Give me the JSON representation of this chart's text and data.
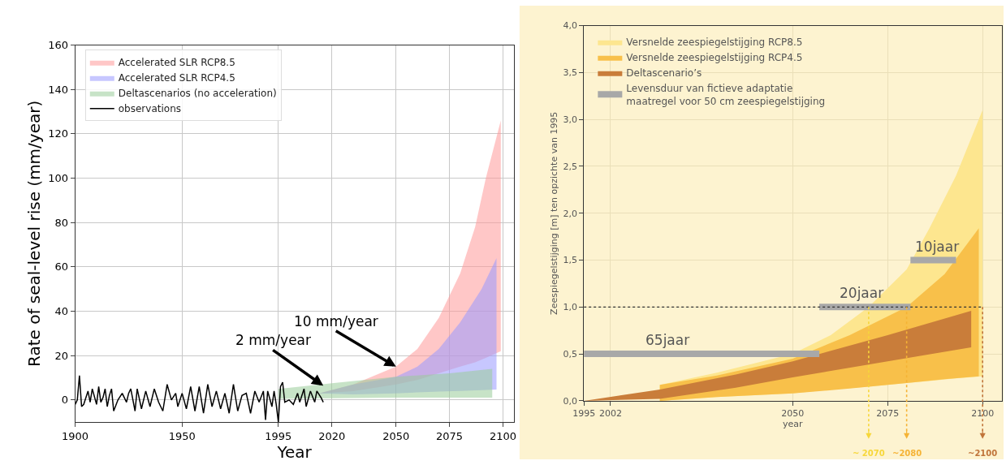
{
  "chart_data": [
    {
      "type": "area",
      "xlabel": "Year",
      "ylabel": "Rate of seal-level rise (mm/year)",
      "xlim": [
        1900,
        2105
      ],
      "ylim": [
        -10,
        160
      ],
      "xticks": [
        1900,
        1950,
        1995,
        2020,
        2050,
        2075,
        2100
      ],
      "yticks": [
        0,
        20,
        40,
        60,
        80,
        100,
        120,
        140,
        160
      ],
      "grid": true,
      "legend": "top left",
      "series": [
        {
          "name": "Accelerated SLR RCP8.5",
          "color": "#ff9999",
          "x": [
            2014,
            2030,
            2050,
            2060,
            2070,
            2080,
            2087,
            2092,
            2099
          ],
          "values": [
            null,
            null,
            null,
            null,
            null,
            null,
            null,
            null,
            null
          ],
          "upper": [
            3,
            7,
            15,
            23,
            37,
            57,
            78,
            100,
            126
          ],
          "lower": [
            3,
            4,
            7,
            9,
            12,
            15,
            17,
            19,
            22
          ]
        },
        {
          "name": "Accelerated SLR RCP4.5",
          "color": "#9999ff",
          "x": [
            2014,
            2030,
            2050,
            2060,
            2070,
            2080,
            2090,
            2097
          ],
          "values": [
            null,
            null,
            null,
            null,
            null,
            null,
            null,
            null
          ],
          "upper": [
            3,
            7,
            10.5,
            15,
            23,
            35,
            50,
            64
          ],
          "lower": [
            3,
            2.5,
            3,
            3.4,
            3.8,
            4.1,
            4.4,
            4.7
          ]
        },
        {
          "name": "Deltascenarios (no acceleration)",
          "color": "#99cc99",
          "x": [
            1995,
            2020,
            2050,
            2075,
            2095
          ],
          "values": [
            null,
            null,
            null,
            null,
            null
          ],
          "upper": [
            5,
            7.5,
            10.5,
            12,
            14
          ],
          "lower": [
            0.5,
            0.8,
            1,
            1,
            1
          ]
        },
        {
          "name": "observations",
          "type": "line",
          "color": "#000000",
          "x": [
            1900,
            1901,
            1902,
            1903,
            1904,
            1906,
            1907,
            1908,
            1910,
            1911,
            1912,
            1913,
            1914,
            1915,
            1916,
            1917,
            1918,
            1920,
            1922,
            1924,
            1925,
            1926,
            1928,
            1929,
            1931,
            1933,
            1935,
            1937,
            1939,
            1941,
            1943,
            1945,
            1947,
            1948,
            1950,
            1952,
            1954,
            1956,
            1958,
            1960,
            1962,
            1964,
            1966,
            1968,
            1970,
            1972,
            1974,
            1976,
            1978,
            1980,
            1982,
            1984,
            1986,
            1988,
            1989,
            1990,
            1992,
            1993,
            1994,
            1995,
            1996,
            1997,
            1998,
            2000,
            2002,
            2004,
            2005,
            2007,
            2008,
            2010,
            2012,
            2013,
            2015,
            2016
          ],
          "values": [
            -2,
            0,
            11,
            -3,
            -2,
            4,
            -1,
            5,
            -2,
            6,
            -1,
            1,
            5,
            -3,
            2,
            5,
            -5,
            0,
            3,
            -1,
            3,
            5,
            -5,
            5,
            -4,
            4,
            -3,
            5,
            -1,
            -5,
            7,
            0,
            3,
            -3,
            3,
            -4,
            6,
            -5,
            6,
            -6,
            7,
            -3,
            4,
            -4,
            3,
            -6,
            7,
            -5,
            2,
            3,
            -6,
            4,
            -1,
            4,
            -9,
            4,
            -3,
            4,
            -2,
            -10,
            6,
            8,
            -1,
            0,
            -2,
            3,
            -1,
            5,
            -3,
            4,
            -1,
            4,
            1,
            -1
          ]
        }
      ],
      "annotations": [
        {
          "text": "2 mm/year",
          "x": 2016,
          "y": 6.4
        },
        {
          "text": "10 mm/year",
          "x": 2050,
          "y": 15
        }
      ]
    },
    {
      "type": "area",
      "xlabel": "year",
      "ylabel": "Zeespiegelstijging [m] ten opzichte van 1995",
      "xlim": [
        1995,
        2105
      ],
      "ylim": [
        0,
        4
      ],
      "xticks": [
        1995,
        2002,
        2050,
        2075,
        2100
      ],
      "yticks": [
        {
          "value": 0,
          "label": "0,0"
        },
        {
          "value": 0.5,
          "label": "0,5"
        },
        {
          "value": 1,
          "label": "1,0"
        },
        {
          "value": 1.5,
          "label": "1,5"
        },
        {
          "value": 2,
          "label": "2,0"
        },
        {
          "value": 2.5,
          "label": "2,5"
        },
        {
          "value": 3,
          "label": "3,0"
        },
        {
          "value": 3.5,
          "label": "3,5"
        },
        {
          "value": 4,
          "label": "4,0"
        }
      ],
      "grid": true,
      "legend": "top left",
      "series": [
        {
          "name": "Versnelde zeespiegelstijging RCP8.5",
          "color": "#fde68f",
          "x": [
            2015,
            2030,
            2050,
            2060,
            2070,
            2080,
            2086,
            2093,
            2100
          ],
          "values": [
            null,
            null,
            null,
            null,
            null,
            null,
            null,
            null,
            null
          ],
          "upper": [
            0.17,
            0.3,
            0.5,
            0.7,
            1.0,
            1.4,
            1.84,
            2.4,
            3.1
          ],
          "lower": [
            0,
            0.04,
            0.08,
            0.12,
            0.15,
            0.19,
            0.21,
            0.24,
            0.26
          ]
        },
        {
          "name": "Versnelde zeespiegelstijging RCP4.5",
          "color": "#f8c04a",
          "x": [
            2015,
            2030,
            2050,
            2065,
            2080,
            2090,
            2099
          ],
          "values": [
            null,
            null,
            null,
            null,
            null,
            null,
            null
          ],
          "upper": [
            0.17,
            0.27,
            0.45,
            0.7,
            1.0,
            1.35,
            1.84
          ],
          "lower": [
            0,
            0.04,
            0.08,
            0.13,
            0.19,
            0.23,
            0.26
          ]
        },
        {
          "name": "Deltascenario’s",
          "color": "#c97d3a",
          "x": [
            1995,
            2015,
            2035,
            2050,
            2075,
            2097
          ],
          "values": [
            null,
            null,
            null,
            null,
            null,
            null
          ],
          "upper": [
            0,
            0.12,
            0.28,
            0.42,
            0.7,
            0.96
          ],
          "lower": [
            0,
            0.02,
            0.14,
            0.25,
            0.42,
            0.57
          ]
        },
        {
          "name": "Levensduur van fictieve adaptatie\nmaatregel voor 50 cm zeespiegelstijging",
          "type": "line",
          "color": "#a8a8a8",
          "x": [
            1995,
            2057
          ],
          "values": [
            0.5,
            0.5
          ]
        },
        {
          "type": "line",
          "color": "#a8a8a8",
          "x": [
            2057,
            2081
          ],
          "values": [
            1.0,
            1.0
          ]
        },
        {
          "type": "line",
          "color": "#a8a8a8",
          "x": [
            2081,
            2093
          ],
          "values": [
            1.5,
            1.5
          ]
        }
      ],
      "ref_lines": [
        {
          "axis": "y",
          "value": 1.0,
          "color": "#333333",
          "line_style": "dotted"
        },
        {
          "axis": "x",
          "value": 2070,
          "label": "~ 2070",
          "color": "#f7d73a",
          "line_style": "dotted"
        },
        {
          "axis": "x",
          "value": 2080,
          "label": "~2080",
          "color": "#f5b335",
          "line_style": "dotted"
        },
        {
          "axis": "x",
          "value": 2100,
          "label": "~2100",
          "color": "#c0743a",
          "line_style": "dotted"
        }
      ],
      "annotations": [
        {
          "text": "65jaar",
          "x": 2017,
          "y": 0.5
        },
        {
          "text": "20jaar",
          "x": 2068,
          "y": 1.0
        },
        {
          "text": "10jaar",
          "x": 2088,
          "y": 1.5
        }
      ]
    }
  ]
}
